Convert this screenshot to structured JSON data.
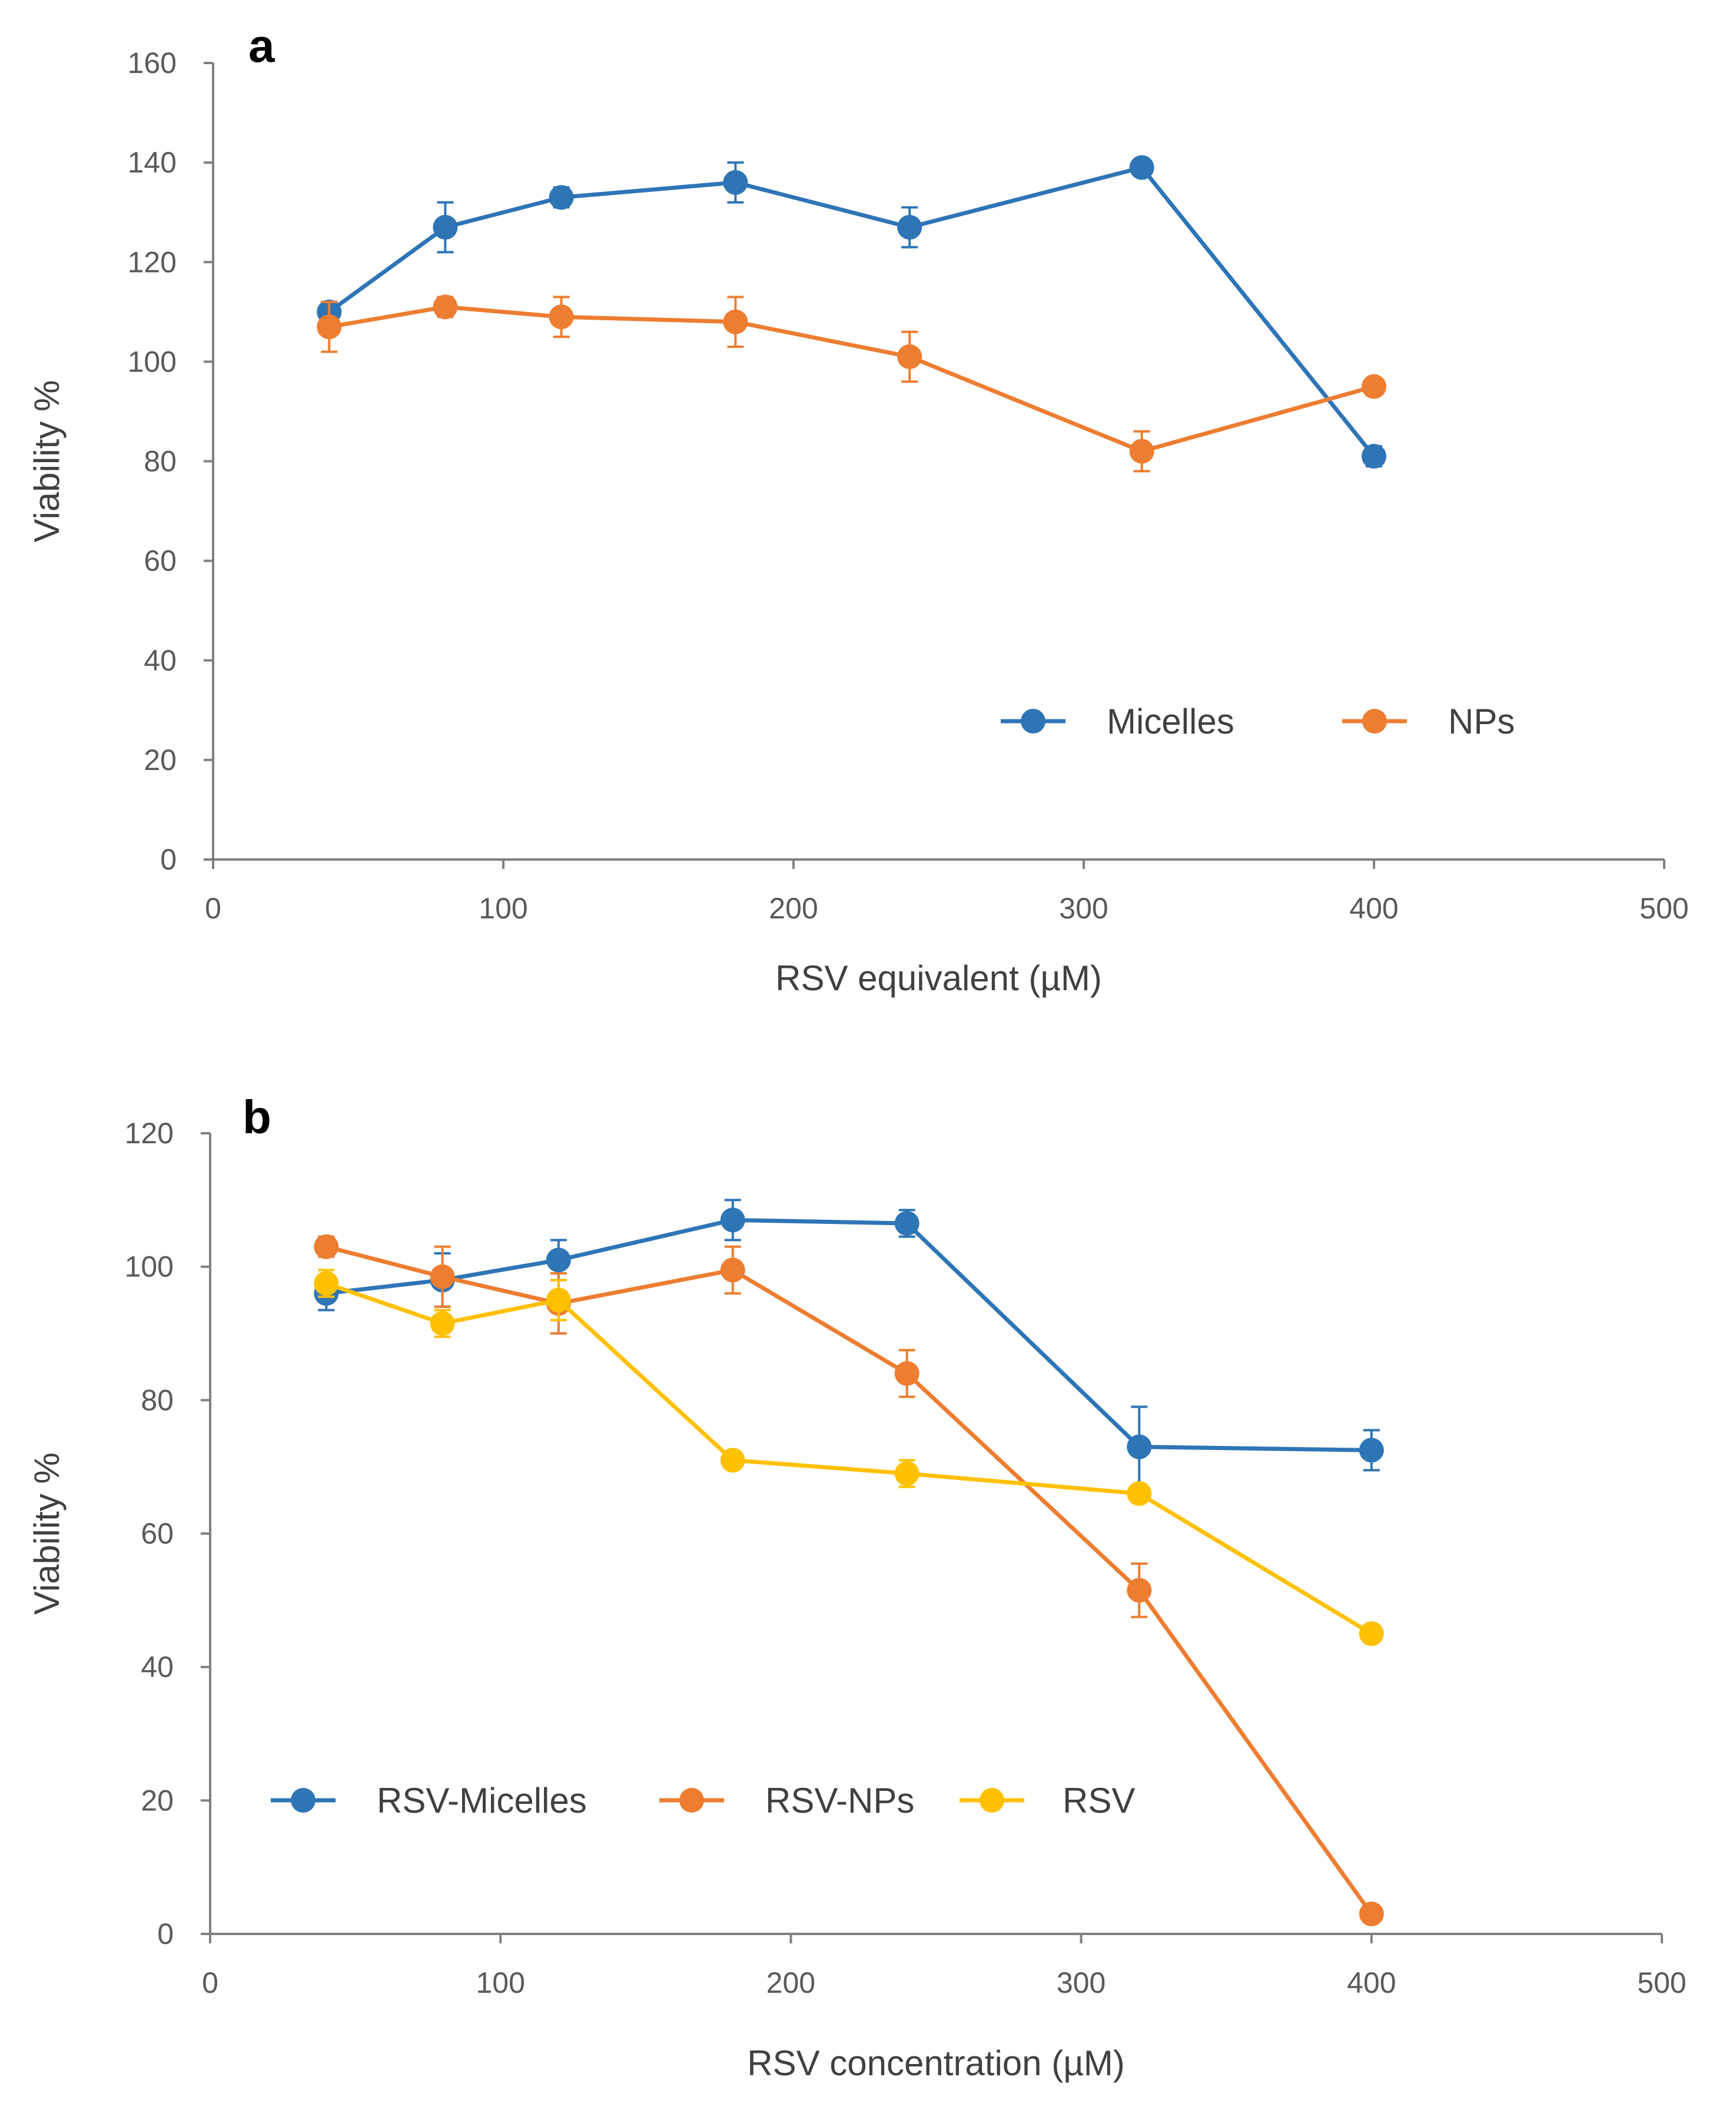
{
  "chart_data": [
    {
      "type": "line",
      "panel_label": "a",
      "title": "",
      "xlabel": "RSV equivalent (µM)",
      "ylabel": "Viability %",
      "xlim": [
        0,
        500
      ],
      "ylim": [
        0,
        160
      ],
      "xticks": [
        0,
        100,
        200,
        300,
        400,
        500
      ],
      "yticks": [
        0,
        20,
        40,
        60,
        80,
        100,
        120,
        140,
        160
      ],
      "grid": false,
      "legend_position": "lower-right",
      "x": [
        40,
        80,
        120,
        180,
        240,
        320,
        400
      ],
      "series": [
        {
          "name": "Micelles",
          "color": "#2e75b6",
          "values": [
            110,
            127,
            133,
            136,
            127,
            139,
            81
          ],
          "errors": [
            2,
            5,
            2,
            4,
            4,
            1,
            2
          ]
        },
        {
          "name": "NPs",
          "color": "#ed7d31",
          "values": [
            107,
            111,
            109,
            108,
            101,
            82,
            95
          ],
          "errors": [
            5,
            2,
            4,
            5,
            5,
            4,
            1
          ]
        }
      ]
    },
    {
      "type": "line",
      "panel_label": "b",
      "title": "",
      "xlabel": "RSV concentration (µM)",
      "ylabel": "Viability %",
      "xlim": [
        0,
        500
      ],
      "ylim": [
        0,
        120
      ],
      "xticks": [
        0,
        100,
        200,
        300,
        400,
        500
      ],
      "yticks": [
        0,
        20,
        40,
        60,
        80,
        100,
        120
      ],
      "grid": false,
      "legend_position": "lower-left",
      "x": [
        40,
        80,
        120,
        180,
        240,
        320,
        400
      ],
      "series": [
        {
          "name": "RSV-Micelles",
          "color": "#2e75b6",
          "values": [
            96,
            98,
            101,
            107,
            106.5,
            73,
            72.5
          ],
          "errors": [
            2.5,
            4,
            3,
            3,
            2,
            6,
            3
          ]
        },
        {
          "name": "RSV-NPs",
          "color": "#ed7d31",
          "values": [
            103,
            98.5,
            94.5,
            99.5,
            84,
            51.5,
            3
          ],
          "errors": [
            1.5,
            4.5,
            4.5,
            3.5,
            3.5,
            4,
            0.5
          ]
        },
        {
          "name": "RSV",
          "color": "#ffc000",
          "values": [
            97.5,
            91.5,
            95,
            71,
            69,
            66,
            45
          ],
          "errors": [
            2,
            2,
            3,
            1,
            2,
            1,
            0.5
          ]
        }
      ]
    }
  ]
}
